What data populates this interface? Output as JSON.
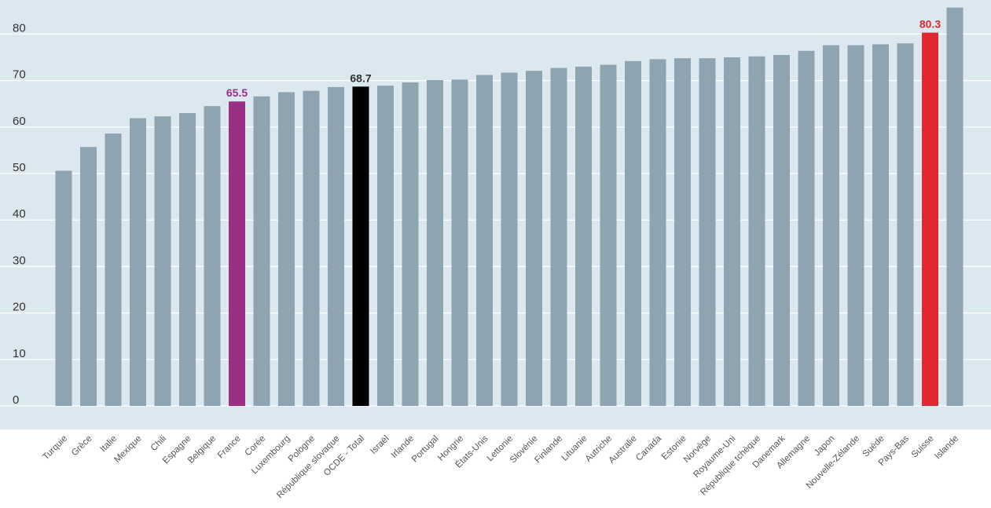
{
  "chart_data": {
    "type": "bar",
    "categories": [
      "Turquie",
      "Grèce",
      "Italie",
      "Mexique",
      "Chili",
      "Espagne",
      "Belgique",
      "France",
      "Corée",
      "Luxembourg",
      "Pologne",
      "République slovaque",
      "OCDE - Total",
      "Israël",
      "Irlande",
      "Portugal",
      "Hongrie",
      "États-Unis",
      "Lettonie",
      "Slovénie",
      "Finlande",
      "Lituanie",
      "Autriche",
      "Australie",
      "Canada",
      "Estonie",
      "Norvège",
      "Royaume-Uni",
      "République tchèque",
      "Danemark",
      "Allemagne",
      "Japon",
      "Nouvelle-Zélande",
      "Suède",
      "Pays-Bas",
      "Suisse",
      "Islande"
    ],
    "values": [
      50.6,
      55.7,
      58.6,
      61.9,
      62.3,
      63.0,
      64.5,
      65.5,
      66.6,
      67.5,
      67.8,
      68.6,
      68.7,
      68.9,
      69.6,
      70.1,
      70.2,
      71.2,
      71.7,
      72.1,
      72.7,
      73.0,
      73.4,
      74.2,
      74.6,
      74.8,
      74.8,
      75.0,
      75.2,
      75.5,
      76.4,
      77.6,
      77.6,
      77.8,
      78.0,
      80.3,
      85.7
    ],
    "highlights": {
      "France": {
        "color": "#993085",
        "label": "65.5"
      },
      "OCDE - Total": {
        "color": "#000000",
        "label": "68.7"
      },
      "Suisse": {
        "color": "#e0282e",
        "label": "80.3"
      }
    },
    "default_color": "#8fa4b1",
    "background_color": "#dce8f0",
    "yticks": [
      0,
      10,
      20,
      30,
      40,
      50,
      60,
      70,
      80
    ],
    "ylim": [
      0,
      86
    ],
    "title": "",
    "xlabel": "",
    "ylabel": "",
    "grid": true
  }
}
